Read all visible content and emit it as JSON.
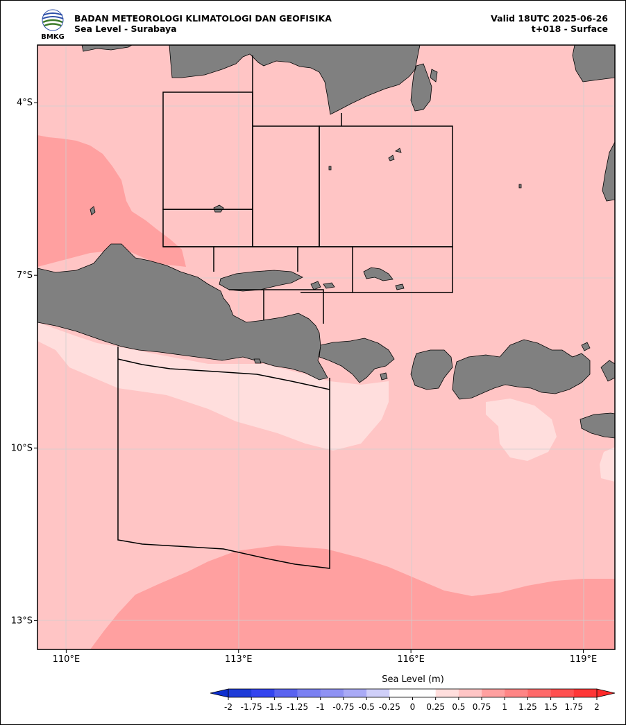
{
  "header": {
    "agency": "BADAN METEOROLOGI KLIMATOLOGI DAN GEOFISIKA",
    "subtitle": "Sea Level - Surabaya",
    "valid": "Valid 18UTC 2025-06-26",
    "step": "t+018 - Surface",
    "logo_text": "BMKG"
  },
  "map": {
    "lon_range": [
      109.5,
      119.55
    ],
    "lat_range": [
      -13.5,
      -3.0
    ],
    "lon_ticks": [
      {
        "value": 110,
        "label": "110°E"
      },
      {
        "value": 113,
        "label": "113°E"
      },
      {
        "value": 116,
        "label": "116°E"
      },
      {
        "value": 119,
        "label": "119°E"
      }
    ],
    "lat_ticks": [
      {
        "value": -4,
        "label": "4°S"
      },
      {
        "value": -7,
        "label": "7°S"
      },
      {
        "value": -10,
        "label": "10°S"
      },
      {
        "value": -13,
        "label": "13°S"
      }
    ],
    "land_color": "#808080",
    "gridlines": true
  },
  "colorbar": {
    "title": "Sea Level (m)",
    "ticks": [
      "-2",
      "-1.75",
      "-1.5",
      "-1.25",
      "-1",
      "-0.75",
      "-0.5",
      "-0.25",
      "0",
      "0.25",
      "0.5",
      "0.75",
      "1",
      "1.25",
      "1.5",
      "1.75",
      "2"
    ],
    "under_color": "#0d2fcf",
    "over_color": "#ff2a2a",
    "colors": [
      "#1d3bd8",
      "#3344ef",
      "#5a63f0",
      "#7a80f2",
      "#8f92f4",
      "#a9aaf6",
      "#cfcff9",
      "#ffffff",
      "#ffffff",
      "#ffdedd",
      "#ffc5c5",
      "#ffa0a0",
      "#ff8585",
      "#ff6a6a",
      "#ff5050",
      "#ff3636"
    ]
  }
}
